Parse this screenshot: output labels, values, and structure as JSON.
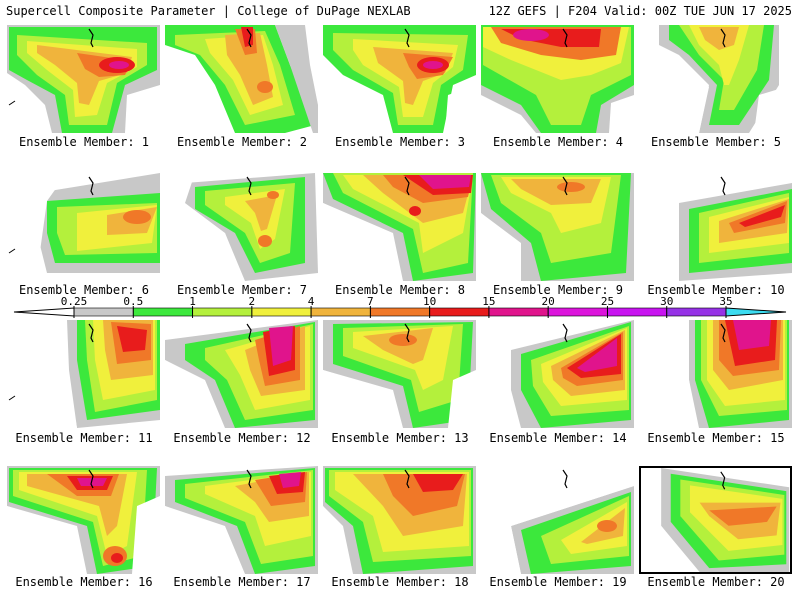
{
  "header": {
    "title": "Supercell Composite Parameter | College of DuPage NEXLAB",
    "run_info": "12Z GEFS | F204 Valid: 00Z TUE JUN 17 2025"
  },
  "colorbar": {
    "levels": [
      "0.25",
      "0.5",
      "1",
      "2",
      "4",
      "7",
      "10",
      "15",
      "20",
      "25",
      "30",
      "35"
    ],
    "colors": [
      "#c8c8c8",
      "#3ce83c",
      "#b4f03c",
      "#f0f03c",
      "#f0b43c",
      "#f07828",
      "#e81c1c",
      "#e0148c",
      "#dc14dc",
      "#c814f0",
      "#9632e6",
      "#3cdcf0"
    ]
  },
  "panels": [
    {
      "label": "Ensemble Member: 1"
    },
    {
      "label": "Ensemble Member: 2"
    },
    {
      "label": "Ensemble Member: 3"
    },
    {
      "label": "Ensemble Member: 4"
    },
    {
      "label": "Ensemble Member: 5"
    },
    {
      "label": "Ensemble Member: 6"
    },
    {
      "label": "Ensemble Member: 7"
    },
    {
      "label": "Ensemble Member: 8"
    },
    {
      "label": "Ensemble Member: 9"
    },
    {
      "label": "Ensemble Member: 10"
    },
    {
      "label": "Ensemble Member: 11"
    },
    {
      "label": "Ensemble Member: 12"
    },
    {
      "label": "Ensemble Member: 13"
    },
    {
      "label": "Ensemble Member: 14"
    },
    {
      "label": "Ensemble Member: 15"
    },
    {
      "label": "Ensemble Member: 16"
    },
    {
      "label": "Ensemble Member: 17"
    },
    {
      "label": "Ensemble Member: 18"
    },
    {
      "label": "Ensemble Member: 19"
    },
    {
      "label": "Ensemble Member: 20"
    }
  ]
}
